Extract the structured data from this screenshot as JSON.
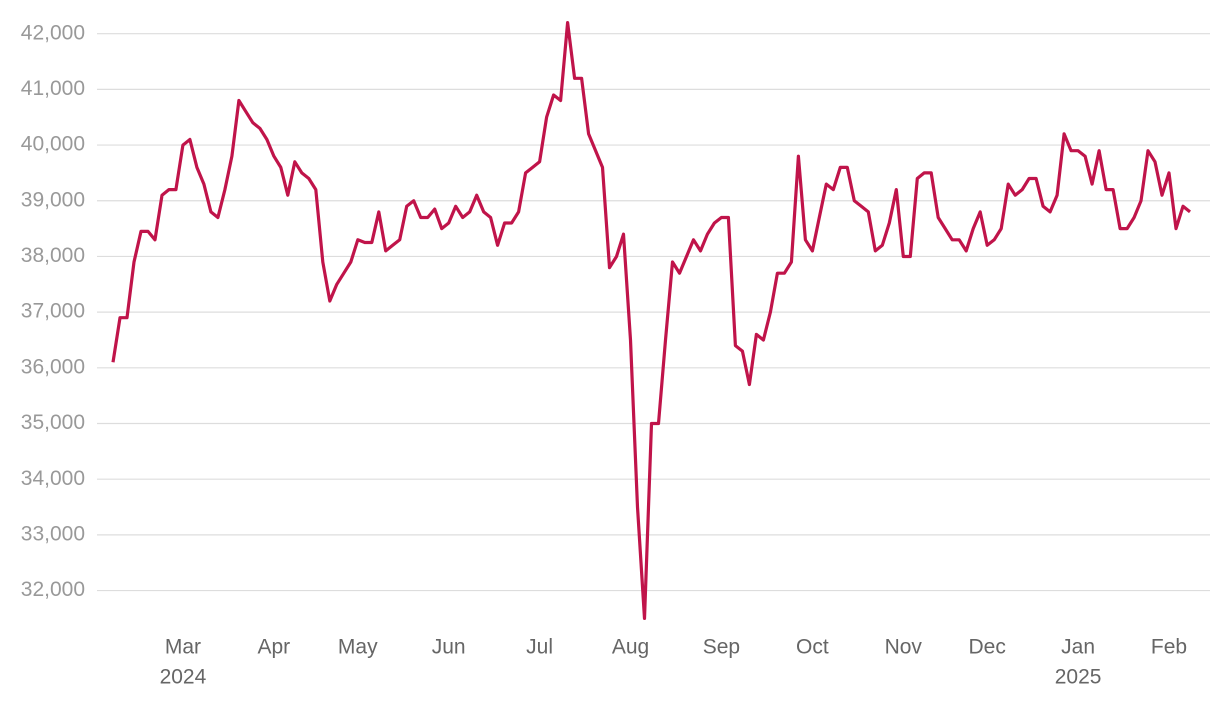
{
  "chart_data": {
    "type": "line",
    "categories": [
      null,
      null,
      null,
      null,
      null,
      null,
      null,
      null,
      null,
      null,
      "Mar",
      null,
      null,
      null,
      null,
      null,
      null,
      null,
      null,
      null,
      null,
      null,
      null,
      "Apr",
      null,
      null,
      null,
      null,
      null,
      null,
      null,
      null,
      null,
      null,
      null,
      "May",
      null,
      null,
      null,
      null,
      null,
      null,
      null,
      null,
      null,
      null,
      null,
      null,
      "Jun",
      null,
      null,
      null,
      null,
      null,
      null,
      null,
      null,
      null,
      null,
      null,
      null,
      "Jul",
      null,
      null,
      null,
      null,
      null,
      null,
      null,
      null,
      null,
      null,
      null,
      null,
      "Aug",
      null,
      null,
      null,
      null,
      null,
      null,
      null,
      null,
      null,
      null,
      null,
      null,
      "Sep",
      null,
      null,
      null,
      null,
      null,
      null,
      null,
      null,
      null,
      null,
      null,
      null,
      "Oct",
      null,
      null,
      null,
      null,
      null,
      null,
      null,
      null,
      null,
      null,
      null,
      null,
      "Nov",
      null,
      null,
      null,
      null,
      null,
      null,
      null,
      null,
      null,
      null,
      null,
      "Dec",
      null,
      null,
      null,
      null,
      null,
      null,
      null,
      null,
      null,
      null,
      null,
      null,
      "Jan",
      null,
      null,
      null,
      null,
      null,
      null,
      null,
      null,
      null,
      null,
      null,
      null,
      "Feb",
      null,
      null,
      null
    ],
    "category_years": [
      null,
      null,
      null,
      null,
      null,
      null,
      null,
      null,
      null,
      null,
      "2024",
      null,
      null,
      null,
      null,
      null,
      null,
      null,
      null,
      null,
      null,
      null,
      null,
      null,
      null,
      null,
      null,
      null,
      null,
      null,
      null,
      null,
      null,
      null,
      null,
      null,
      null,
      null,
      null,
      null,
      null,
      null,
      null,
      null,
      null,
      null,
      null,
      null,
      null,
      null,
      null,
      null,
      null,
      null,
      null,
      null,
      null,
      null,
      null,
      null,
      null,
      null,
      null,
      null,
      null,
      null,
      null,
      null,
      null,
      null,
      null,
      null,
      null,
      null,
      null,
      null,
      null,
      null,
      null,
      null,
      null,
      null,
      null,
      null,
      null,
      null,
      null,
      null,
      null,
      null,
      null,
      null,
      null,
      null,
      null,
      null,
      null,
      null,
      null,
      null,
      null,
      null,
      null,
      null,
      null,
      null,
      null,
      null,
      null,
      null,
      null,
      null,
      null,
      null,
      null,
      null,
      null,
      null,
      null,
      null,
      null,
      null,
      null,
      null,
      null,
      null,
      null,
      null,
      null,
      null,
      null,
      null,
      null,
      null,
      null,
      null,
      null,
      null,
      "2025",
      null,
      null,
      null,
      null,
      null,
      null,
      null,
      null,
      null,
      null,
      null,
      null,
      null,
      null,
      null,
      null
    ],
    "series": [
      {
        "color": "#c0144a",
        "values": [
          36100,
          36900,
          36900,
          37900,
          38450,
          38450,
          38300,
          39100,
          39200,
          39200,
          40000,
          40100,
          39600,
          39300,
          38800,
          38700,
          39200,
          39800,
          40800,
          40600,
          40400,
          40300,
          40100,
          39800,
          39600,
          39100,
          39700,
          39500,
          39400,
          39200,
          37900,
          37200,
          37500,
          37700,
          37900,
          38300,
          38250,
          38250,
          38800,
          38100,
          38200,
          38300,
          38900,
          39000,
          38700,
          38700,
          38850,
          38500,
          38600,
          38900,
          38700,
          38800,
          39100,
          38800,
          38700,
          38200,
          38600,
          38600,
          38800,
          39500,
          39600,
          39700,
          40500,
          40900,
          40800,
          42200,
          41200,
          41200,
          40200,
          39900,
          39600,
          37800,
          38000,
          38400,
          36500,
          33500,
          31500,
          35000,
          35000,
          36500,
          37900,
          37700,
          38000,
          38300,
          38100,
          38400,
          38600,
          38700,
          38700,
          36400,
          36300,
          35700,
          36600,
          36500,
          37000,
          37700,
          37700,
          37900,
          39800,
          38300,
          38100,
          38700,
          39300,
          39200,
          39600,
          39600,
          39000,
          38900,
          38800,
          38100,
          38200,
          38600,
          39200,
          38000,
          38000,
          39400,
          39500,
          39500,
          38700,
          38500,
          38300,
          38300,
          38100,
          38500,
          38800,
          38200,
          38300,
          38500,
          39300,
          39100,
          39200,
          39400,
          39400,
          38900,
          38800,
          39100,
          40200,
          39900,
          39900,
          39800,
          39300,
          39900,
          39200,
          39200,
          38500,
          38500,
          38700,
          39000,
          39900,
          39700,
          39100,
          39500,
          38500,
          38900,
          38800
        ]
      }
    ],
    "ylim": [
      31400,
      42300
    ],
    "yticks": [
      {
        "value": 32000,
        "label": "32,000"
      },
      {
        "value": 33000,
        "label": "33,000"
      },
      {
        "value": 34000,
        "label": "34,000"
      },
      {
        "value": 35000,
        "label": "35,000"
      },
      {
        "value": 36000,
        "label": "36,000"
      },
      {
        "value": 37000,
        "label": "37,000"
      },
      {
        "value": 38000,
        "label": "38,000"
      },
      {
        "value": 39000,
        "label": "39,000"
      },
      {
        "value": 40000,
        "label": "40,000"
      },
      {
        "value": 41000,
        "label": "41,000"
      },
      {
        "value": 42000,
        "label": "42,000"
      }
    ],
    "grid": true
  }
}
